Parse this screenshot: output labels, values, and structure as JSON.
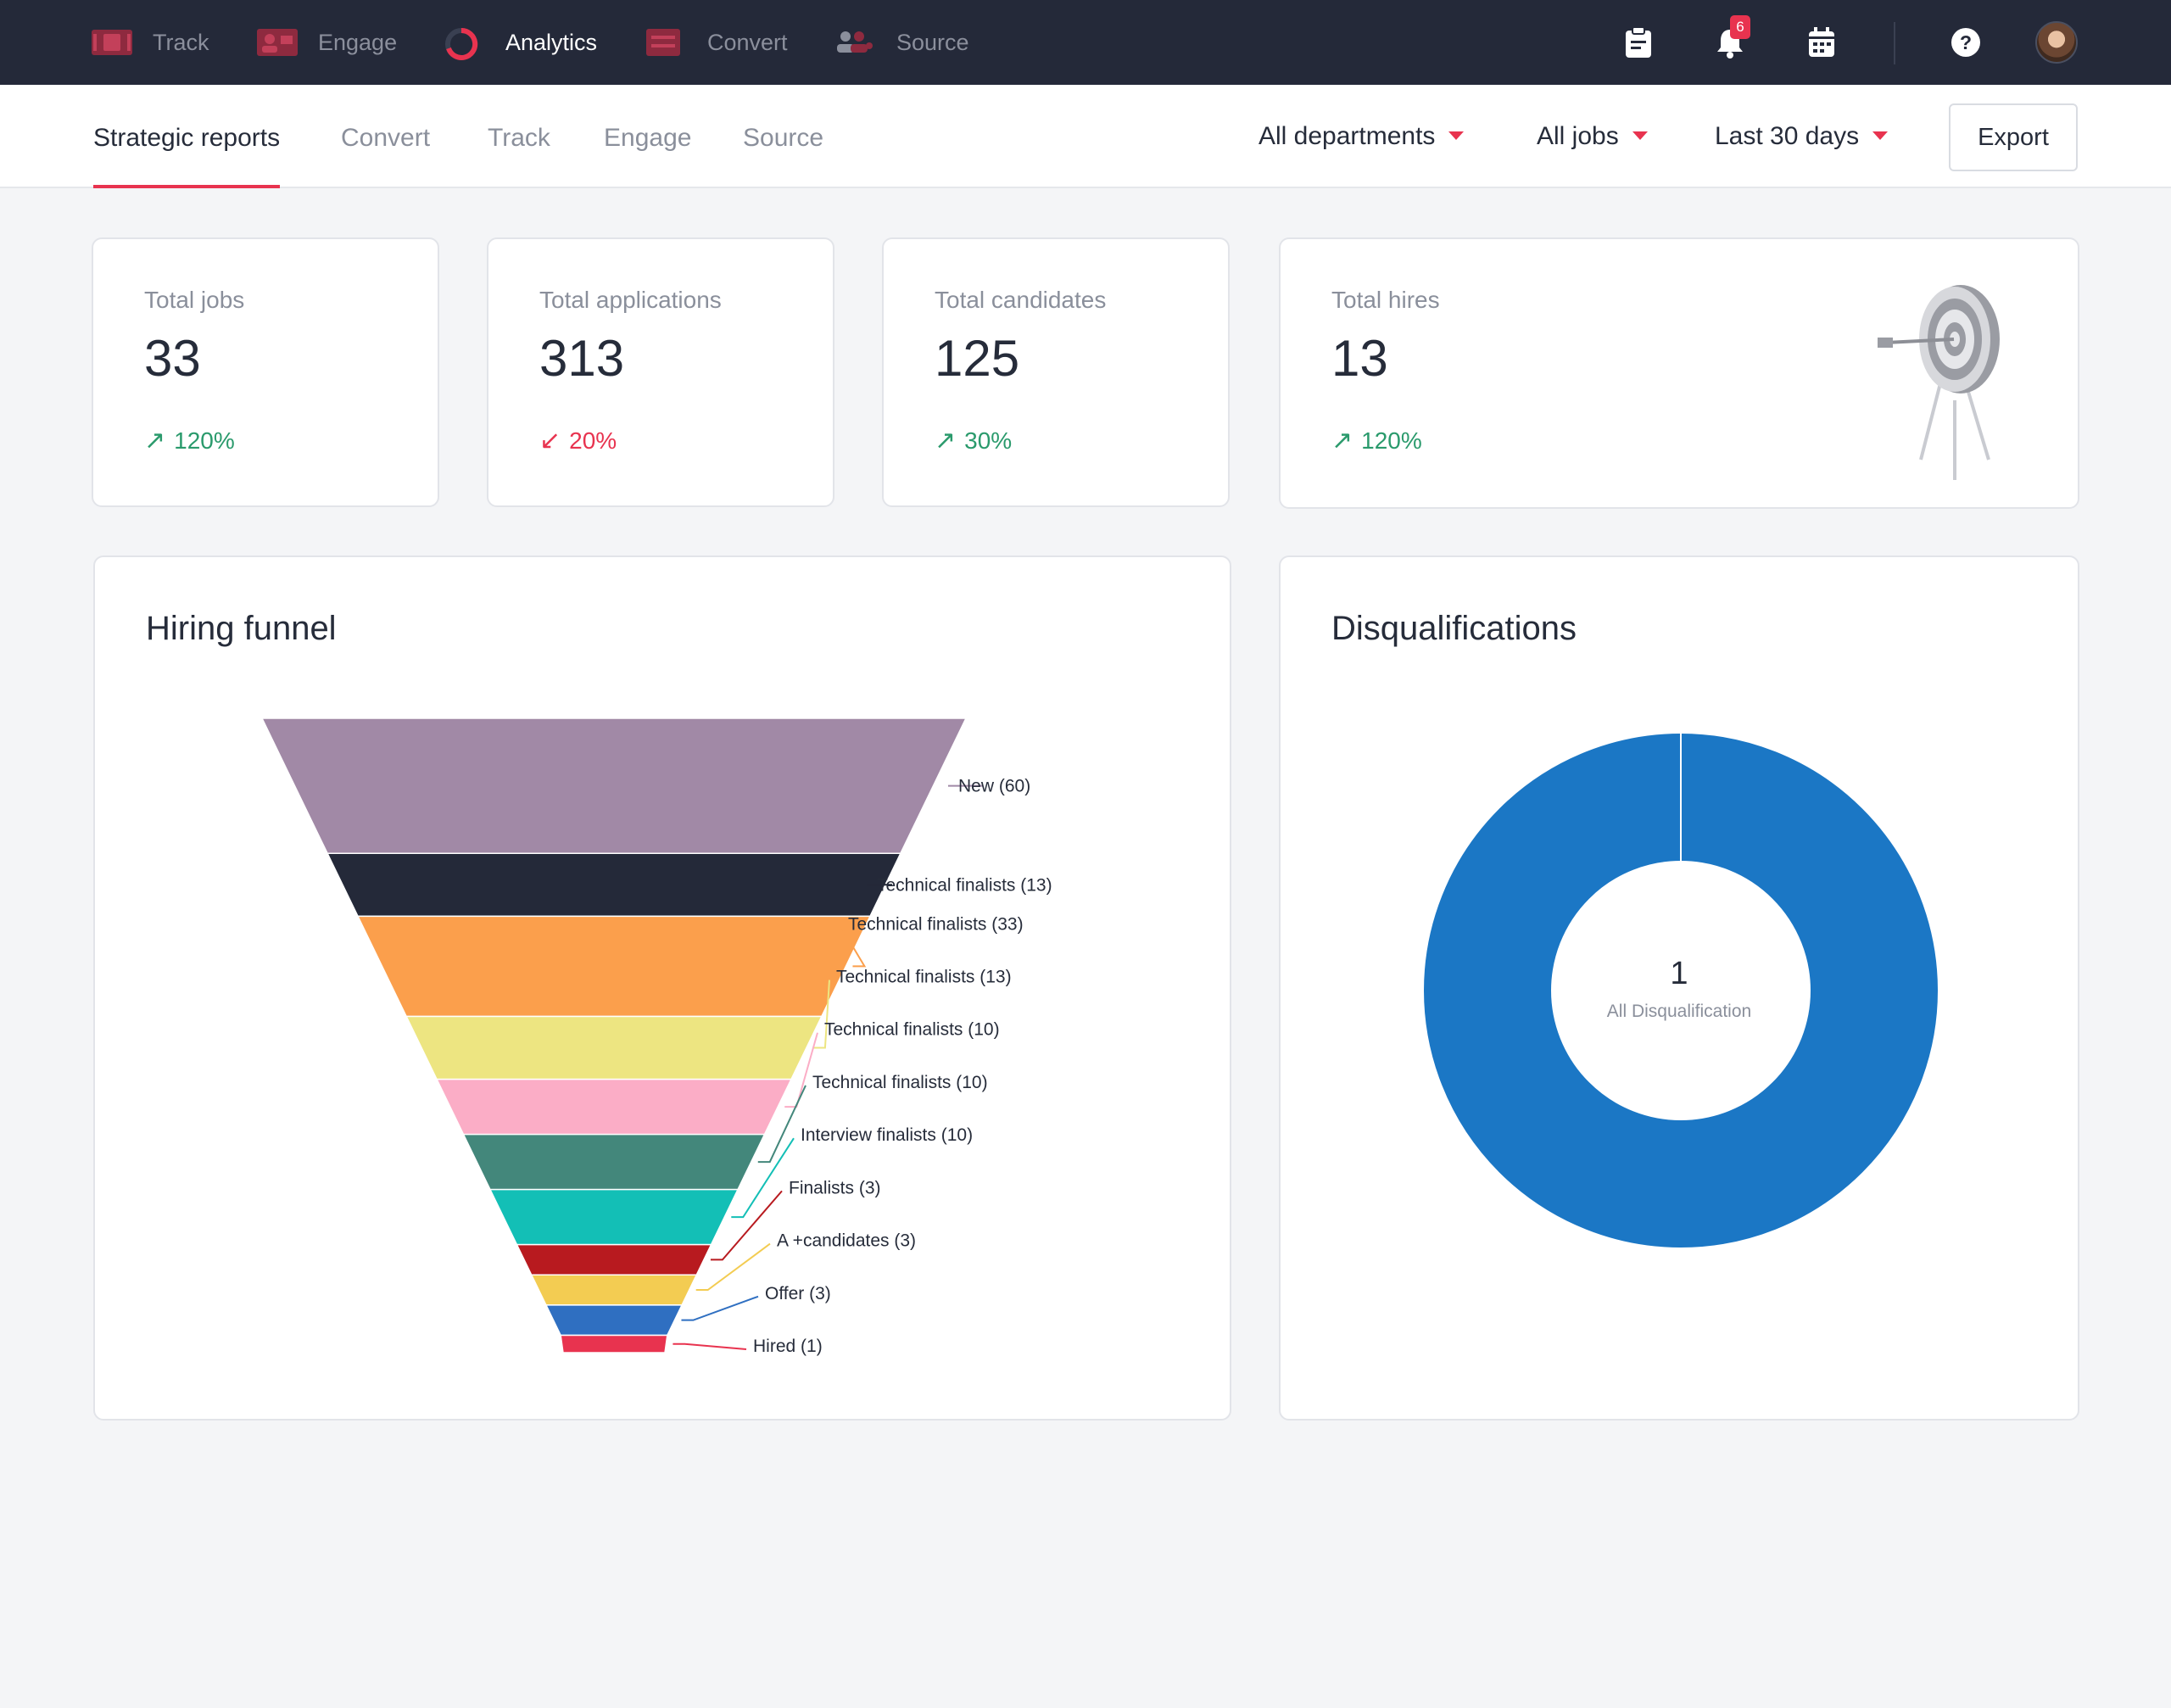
{
  "top_nav": {
    "items": [
      {
        "label": "Track",
        "icon": "track-icon"
      },
      {
        "label": "Engage",
        "icon": "engage-icon"
      },
      {
        "label": "Analytics",
        "icon": "analytics-icon",
        "active": true
      },
      {
        "label": "Convert",
        "icon": "convert-icon"
      },
      {
        "label": "Source",
        "icon": "source-icon"
      }
    ],
    "notifications_count": "6",
    "icons": [
      "clipboard-icon",
      "bell-icon",
      "calendar-icon",
      "help-icon",
      "avatar"
    ]
  },
  "sub_header": {
    "tabs": [
      {
        "label": "Strategic reports",
        "active": true
      },
      {
        "label": "Convert"
      },
      {
        "label": "Track"
      },
      {
        "label": "Engage"
      },
      {
        "label": "Source"
      }
    ],
    "filters": {
      "departments": "All departments",
      "jobs": "All jobs",
      "period": "Last 30 days"
    },
    "export_label": "Export"
  },
  "stats": [
    {
      "label": "Total jobs",
      "value": "33",
      "change": "120%",
      "direction": "up"
    },
    {
      "label": "Total applications",
      "value": "313",
      "change": "20%",
      "direction": "down"
    },
    {
      "label": "Total candidates",
      "value": "125",
      "change": "30%",
      "direction": "up"
    },
    {
      "label": "Total hires",
      "value": "13",
      "change": "120%",
      "direction": "up"
    }
  ],
  "colors": {
    "accent": "#e8334f",
    "positive": "#2a9a6c",
    "nav_bg": "#242939",
    "donut": "#1b77c5"
  },
  "chart_data": [
    {
      "type": "funnel",
      "title": "Hiring funnel",
      "stages": [
        {
          "label": "New (60)",
          "value": 60,
          "color": "#a189a6"
        },
        {
          "label": "Technical finalists (13)",
          "value": 13,
          "color": "#242939"
        },
        {
          "label": "Technical finalists (33)",
          "value": 33,
          "color": "#fb9f4c"
        },
        {
          "label": "Technical finalists (13)",
          "value": 13,
          "color": "#ede581"
        },
        {
          "label": "Technical finalists (10)",
          "value": 10,
          "color": "#fbadc6"
        },
        {
          "label": "Technical finalists (10)",
          "value": 10,
          "color": "#43877b"
        },
        {
          "label": "Interview finalists (10)",
          "value": 10,
          "color": "#13bfb6"
        },
        {
          "label": "Finalists (3)",
          "value": 3,
          "color": "#b81a1f"
        },
        {
          "label": "A +candidates (3)",
          "value": 3,
          "color": "#f3cc52"
        },
        {
          "label": "Offer (3)",
          "value": 3,
          "color": "#2f6fc1"
        },
        {
          "label": "Hired (1)",
          "value": 1,
          "color": "#e8334f"
        }
      ]
    },
    {
      "type": "pie",
      "title": "Disqualifications",
      "slices": [
        {
          "label": "All Disqualification",
          "value": 1,
          "color": "#1b77c5"
        }
      ],
      "center_value": "1",
      "center_label": "All Disqualification"
    }
  ]
}
